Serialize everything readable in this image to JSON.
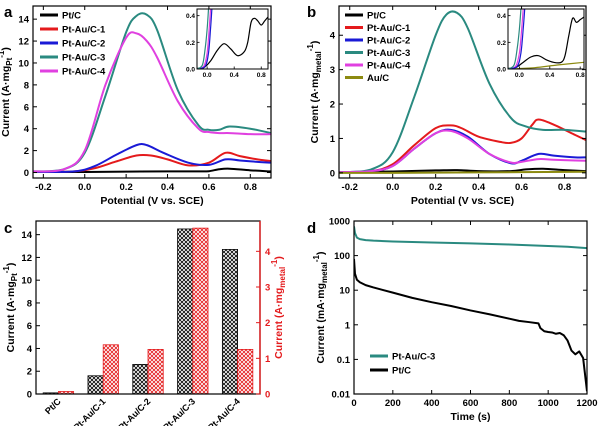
{
  "panels": [
    {
      "label": "a",
      "type": "line",
      "xlabel": "Potential (V vs. SCE)",
      "ylabel_main": "Current (A·mg",
      "ylabel_sub": "Pt",
      "ylabel_sup": "-1",
      "ylabel_end": ")",
      "xlim": [
        -0.25,
        0.9
      ],
      "ylim": [
        -0.5,
        15.2
      ],
      "xticks": [
        -0.2,
        0.0,
        0.2,
        0.4,
        0.6,
        0.8
      ],
      "xtick_labels": [
        "-0.2",
        "0.0",
        "0.2",
        "0.4",
        "0.6",
        "0.8"
      ],
      "yticks": [
        0,
        2,
        4,
        6,
        8,
        10,
        12,
        14
      ],
      "ytick_labels": [
        "0",
        "2",
        "4",
        "6",
        "8",
        "10",
        "12",
        "14"
      ],
      "legend_position": "top-left",
      "series": [
        {
          "name": "Pt/C",
          "color": "#000000",
          "x": [
            -0.25,
            0.0,
            0.2,
            0.4,
            0.55,
            0.6,
            0.65,
            0.7,
            0.8,
            0.9
          ],
          "y": [
            0.05,
            0.05,
            0.08,
            0.1,
            0.1,
            0.12,
            0.3,
            0.35,
            0.2,
            0.1
          ]
        },
        {
          "name": "Pt-Au/C-1",
          "color": "#e41a1c",
          "x": [
            -0.25,
            -0.05,
            0.05,
            0.15,
            0.25,
            0.32,
            0.4,
            0.5,
            0.6,
            0.68,
            0.75,
            0.85,
            0.9
          ],
          "y": [
            0.05,
            0.1,
            0.4,
            1.0,
            1.55,
            1.55,
            1.2,
            0.65,
            0.9,
            1.8,
            1.5,
            1.15,
            1.05
          ]
        },
        {
          "name": "Pt-Au/C-2",
          "color": "#1a1ad6",
          "x": [
            -0.25,
            -0.05,
            0.05,
            0.15,
            0.25,
            0.3,
            0.38,
            0.5,
            0.6,
            0.68,
            0.75,
            0.85,
            0.9
          ],
          "y": [
            0.05,
            0.1,
            0.6,
            1.6,
            2.5,
            2.5,
            1.8,
            0.9,
            0.7,
            1.2,
            1.1,
            0.95,
            0.9
          ]
        },
        {
          "name": "Pt-Au/C-3",
          "color": "#2a8a80",
          "x": [
            -0.25,
            -0.1,
            0.0,
            0.1,
            0.2,
            0.25,
            0.3,
            0.35,
            0.45,
            0.55,
            0.6,
            0.65,
            0.7,
            0.8,
            0.9
          ],
          "y": [
            0.1,
            0.3,
            1.8,
            7.0,
            12.8,
            14.3,
            14.4,
            13.0,
            7.5,
            4.3,
            3.9,
            3.9,
            4.2,
            4.0,
            3.6
          ]
        },
        {
          "name": "Pt-Au/C-4",
          "color": "#e040e0",
          "x": [
            -0.25,
            -0.1,
            0.0,
            0.1,
            0.2,
            0.25,
            0.3,
            0.35,
            0.45,
            0.55,
            0.6,
            0.65,
            0.7,
            0.8,
            0.9
          ],
          "y": [
            0.1,
            0.3,
            2.0,
            8.0,
            12.3,
            12.7,
            12.0,
            10.5,
            6.5,
            4.0,
            3.7,
            3.6,
            3.6,
            3.5,
            3.5
          ]
        }
      ],
      "inset": {
        "xlim": [
          -0.15,
          0.9
        ],
        "ylim": [
          0.0,
          0.45
        ],
        "xticks": [
          0.0,
          0.4,
          0.8
        ],
        "xtick_labels": [
          "0.0",
          "0.4",
          "0.8"
        ],
        "yticks": [
          0.0,
          0.2,
          0.4
        ],
        "ytick_labels": [
          "0.0",
          "0.2",
          "0.4"
        ],
        "series": [
          {
            "color": "#000000",
            "x": [
              -0.15,
              -0.05,
              0.05,
              0.15,
              0.25,
              0.35,
              0.45,
              0.55,
              0.6,
              0.65,
              0.7,
              0.75,
              0.8,
              0.85,
              0.9
            ],
            "y": [
              0.005,
              0.01,
              0.06,
              0.14,
              0.19,
              0.15,
              0.1,
              0.13,
              0.2,
              0.35,
              0.38,
              0.36,
              0.33,
              0.36,
              0.39
            ]
          },
          {
            "color": "#e040e0",
            "x": [
              -0.15,
              -0.05,
              0.0,
              0.03,
              0.05
            ],
            "y": [
              0.0,
              0.02,
              0.12,
              0.3,
              0.45
            ]
          },
          {
            "color": "#1a1ad6",
            "x": [
              -0.15,
              -0.03,
              0.02,
              0.05,
              0.07
            ],
            "y": [
              0.0,
              0.02,
              0.12,
              0.3,
              0.45
            ]
          },
          {
            "color": "#2a8a80",
            "x": [
              -0.15,
              -0.07,
              -0.03,
              0.0,
              0.02
            ],
            "y": [
              0.0,
              0.03,
              0.15,
              0.3,
              0.45
            ]
          }
        ]
      }
    },
    {
      "label": "b",
      "type": "line",
      "xlabel": "Potential (V vs. SCE)",
      "ylabel_main": "Current (A·mg",
      "ylabel_sub": "metal",
      "ylabel_sup": "-1",
      "ylabel_end": ")",
      "xlim": [
        -0.25,
        0.9
      ],
      "ylim": [
        -0.15,
        4.85
      ],
      "xticks": [
        -0.2,
        0.0,
        0.2,
        0.4,
        0.6,
        0.8
      ],
      "xtick_labels": [
        "-0.2",
        "0.0",
        "0.2",
        "0.4",
        "0.6",
        "0.8"
      ],
      "yticks": [
        0,
        1,
        2,
        3,
        4
      ],
      "ytick_labels": [
        "0",
        "1",
        "2",
        "3",
        "4"
      ],
      "legend_position": "top-left",
      "series": [
        {
          "name": "Pt/C",
          "color": "#000000",
          "x": [
            -0.25,
            0.0,
            0.2,
            0.3,
            0.4,
            0.55,
            0.62,
            0.7,
            0.8,
            0.9
          ],
          "y": [
            0.02,
            0.04,
            0.07,
            0.08,
            0.05,
            0.05,
            0.1,
            0.12,
            0.08,
            0.05
          ]
        },
        {
          "name": "Pt-Au/C-1",
          "color": "#e41a1c",
          "x": [
            -0.25,
            -0.1,
            0.0,
            0.1,
            0.2,
            0.27,
            0.32,
            0.4,
            0.5,
            0.55,
            0.6,
            0.65,
            0.68,
            0.75,
            0.85,
            0.9
          ],
          "y": [
            0.02,
            0.05,
            0.25,
            0.8,
            1.3,
            1.38,
            1.3,
            1.05,
            0.9,
            0.87,
            1.0,
            1.4,
            1.55,
            1.4,
            1.1,
            0.95
          ]
        },
        {
          "name": "Pt-Au/C-2",
          "color": "#1a1ad6",
          "x": [
            -0.25,
            -0.1,
            0.0,
            0.1,
            0.2,
            0.27,
            0.35,
            0.45,
            0.55,
            0.6,
            0.68,
            0.75,
            0.85,
            0.9
          ],
          "y": [
            0.02,
            0.05,
            0.2,
            0.7,
            1.15,
            1.25,
            1.05,
            0.55,
            0.28,
            0.35,
            0.55,
            0.5,
            0.45,
            0.45
          ]
        },
        {
          "name": "Pt-Au/C-3",
          "color": "#2a8a80",
          "x": [
            -0.25,
            -0.1,
            0.0,
            0.1,
            0.2,
            0.25,
            0.3,
            0.35,
            0.45,
            0.55,
            0.62,
            0.7,
            0.8,
            0.9
          ],
          "y": [
            0.02,
            0.1,
            0.6,
            2.2,
            4.0,
            4.6,
            4.65,
            4.2,
            2.6,
            1.6,
            1.35,
            1.25,
            1.25,
            1.2
          ]
        },
        {
          "name": "Pt-Au/C-4",
          "color": "#e040e0",
          "x": [
            -0.25,
            -0.1,
            0.0,
            0.1,
            0.2,
            0.27,
            0.35,
            0.45,
            0.55,
            0.6,
            0.68,
            0.75,
            0.85,
            0.9
          ],
          "y": [
            0.02,
            0.05,
            0.2,
            0.7,
            1.15,
            1.22,
            1.0,
            0.55,
            0.3,
            0.32,
            0.4,
            0.38,
            0.36,
            0.35
          ]
        },
        {
          "name": "Au/C",
          "color": "#8c8a10",
          "x": [
            -0.25,
            0.0,
            0.3,
            0.6,
            0.9
          ],
          "y": [
            0.0,
            0.0,
            0.01,
            0.02,
            0.03
          ]
        }
      ],
      "inset": {
        "xlim": [
          -0.15,
          0.85
        ],
        "ylim": [
          0.0,
          0.45
        ],
        "xticks": [
          0.0,
          0.4,
          0.8
        ],
        "xtick_labels": [
          "0.0",
          "0.4",
          "0.8"
        ],
        "yticks": [
          0.0,
          0.2,
          0.4
        ],
        "ytick_labels": [
          "0.0",
          "0.2",
          "0.4"
        ],
        "series": [
          {
            "color": "#000000",
            "x": [
              -0.15,
              -0.05,
              0.05,
              0.15,
              0.25,
              0.35,
              0.45,
              0.55,
              0.6,
              0.65,
              0.7,
              0.75,
              0.8,
              0.85
            ],
            "y": [
              0.005,
              0.01,
              0.05,
              0.09,
              0.1,
              0.07,
              0.05,
              0.05,
              0.1,
              0.25,
              0.38,
              0.35,
              0.37,
              0.39
            ]
          },
          {
            "color": "#8c8a10",
            "x": [
              -0.15,
              0.2,
              0.5,
              0.85
            ],
            "y": [
              0.0,
              0.01,
              0.03,
              0.05
            ]
          },
          {
            "color": "#e040e0",
            "x": [
              -0.15,
              -0.05,
              0.0,
              0.03,
              0.05
            ],
            "y": [
              0.0,
              0.02,
              0.12,
              0.3,
              0.45
            ]
          },
          {
            "color": "#1a1ad6",
            "x": [
              -0.15,
              -0.03,
              0.02,
              0.05,
              0.07
            ],
            "y": [
              0.0,
              0.02,
              0.12,
              0.3,
              0.45
            ]
          },
          {
            "color": "#2a8a80",
            "x": [
              -0.15,
              -0.07,
              -0.03,
              0.0,
              0.02
            ],
            "y": [
              0.0,
              0.03,
              0.15,
              0.3,
              0.45
            ]
          }
        ]
      }
    },
    {
      "label": "c",
      "type": "bar",
      "categories": [
        "Pt/C",
        "Pt-Au/C-1",
        "Pt-Au/C-2",
        "Pt-Au/C-3",
        "Pt-Au/C-4"
      ],
      "left_series": {
        "color": "#000000",
        "values": [
          0.1,
          1.6,
          2.6,
          14.5,
          12.7
        ]
      },
      "right_series": {
        "color": "#e41a1c",
        "values": [
          0.07,
          1.38,
          1.25,
          4.65,
          1.25
        ]
      },
      "left_ylim": [
        0,
        15.2
      ],
      "left_yticks": [
        0,
        2,
        4,
        6,
        8,
        10,
        12,
        14
      ],
      "left_ytick_labels": [
        "0",
        "2",
        "4",
        "6",
        "8",
        "10",
        "12",
        "14"
      ],
      "right_ylim": [
        0,
        4.85
      ],
      "right_yticks": [
        0,
        1,
        2,
        3,
        4
      ],
      "right_ytick_labels": [
        "0",
        "1",
        "2",
        "3",
        "4"
      ],
      "ylabel_left_main": "Current (A·mg",
      "ylabel_left_sub": "Pt",
      "ylabel_left_sup": "-1",
      "ylabel_left_end": ")",
      "ylabel_right_main": "Current (A·mg",
      "ylabel_right_sub": "metal",
      "ylabel_right_sup": "-1",
      "ylabel_right_end": ")"
    },
    {
      "label": "d",
      "type": "line",
      "log_y": true,
      "xlabel": "Time (s)",
      "ylabel_main": "Current (mA·mg",
      "ylabel_sub": "metal",
      "ylabel_sup": "-1",
      "ylabel_end": ")",
      "xlim": [
        0,
        1200
      ],
      "ylim": [
        0.01,
        1000
      ],
      "xticks": [
        0,
        200,
        400,
        600,
        800,
        1000,
        1200
      ],
      "xtick_labels": [
        "0",
        "200",
        "400",
        "600",
        "800",
        "1000",
        "1200"
      ],
      "yticks": [
        0.01,
        0.1,
        1,
        10,
        100,
        1000
      ],
      "ytick_labels": [
        "0.01",
        "0.1",
        "1",
        "10",
        "100",
        "1000"
      ],
      "legend_position": "bottom-left",
      "series": [
        {
          "name": "Pt-Au/C-3",
          "color": "#2a8a80",
          "x": [
            0,
            5,
            15,
            30,
            60,
            100,
            200,
            400,
            600,
            800,
            1000,
            1100,
            1200
          ],
          "y": [
            700,
            450,
            330,
            300,
            280,
            270,
            255,
            240,
            225,
            210,
            190,
            180,
            165
          ]
        },
        {
          "name": "Pt/C",
          "color": "#000000",
          "x": [
            0,
            5,
            15,
            30,
            60,
            100,
            200,
            300,
            400,
            500,
            600,
            700,
            800,
            850,
            900,
            950,
            960,
            980,
            1000,
            1020,
            1040,
            1060,
            1080,
            1100,
            1120,
            1140,
            1160,
            1180,
            1200
          ],
          "y": [
            80,
            30,
            20,
            17,
            14,
            12,
            8.5,
            6,
            4.5,
            3.5,
            2.6,
            2.0,
            1.5,
            1.3,
            1.2,
            1.1,
            0.8,
            0.65,
            0.62,
            0.6,
            0.55,
            0.58,
            0.5,
            0.35,
            0.18,
            0.14,
            0.17,
            0.11,
            0.012
          ]
        }
      ]
    }
  ]
}
